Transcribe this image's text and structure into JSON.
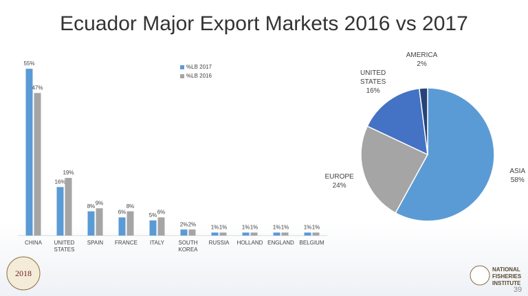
{
  "title": "Ecuador Major Export Markets 2016 vs 2017",
  "chart_data": [
    {
      "type": "bar",
      "categories": [
        "CHINA",
        "UNITED STATES",
        "SPAIN",
        "FRANCE",
        "ITALY",
        "SOUTH KOREA",
        "RUSSIA",
        "HOLLAND",
        "ENGLAND",
        "BELGIUM"
      ],
      "series": [
        {
          "name": "%LB 2017",
          "color": "#5b9bd5",
          "values": [
            55,
            16,
            8,
            6,
            5,
            2,
            1,
            1,
            1,
            1
          ],
          "value_labels": [
            "55%",
            "16%",
            "8%",
            "6%",
            "5%",
            "2%",
            "1%",
            "1%",
            "1%",
            "1%"
          ]
        },
        {
          "name": "%LB 2016",
          "color": "#a5a5a5",
          "values": [
            47,
            19,
            9,
            8,
            6,
            2,
            1,
            1,
            1,
            1
          ],
          "value_labels": [
            "47%",
            "19%",
            "9%",
            "8%",
            "6%",
            "2%",
            "1%",
            "1%",
            "1%",
            "1%"
          ]
        }
      ],
      "ylim": [
        0,
        60
      ]
    },
    {
      "type": "pie",
      "categories": [
        "ASIA",
        "EUROPE",
        "UNITED STATES",
        "AMERICA"
      ],
      "values": [
        58,
        24,
        16,
        2
      ],
      "value_labels": [
        "58%",
        "24%",
        "16%",
        "2%"
      ],
      "colors": [
        "#5b9bd5",
        "#a5a5a5",
        "#4472c4",
        "#264478"
      ]
    }
  ],
  "footer": {
    "logo_left": "2018",
    "logo_right": "NATIONAL FISHERIES INSTITUTE",
    "page_number": "39"
  }
}
